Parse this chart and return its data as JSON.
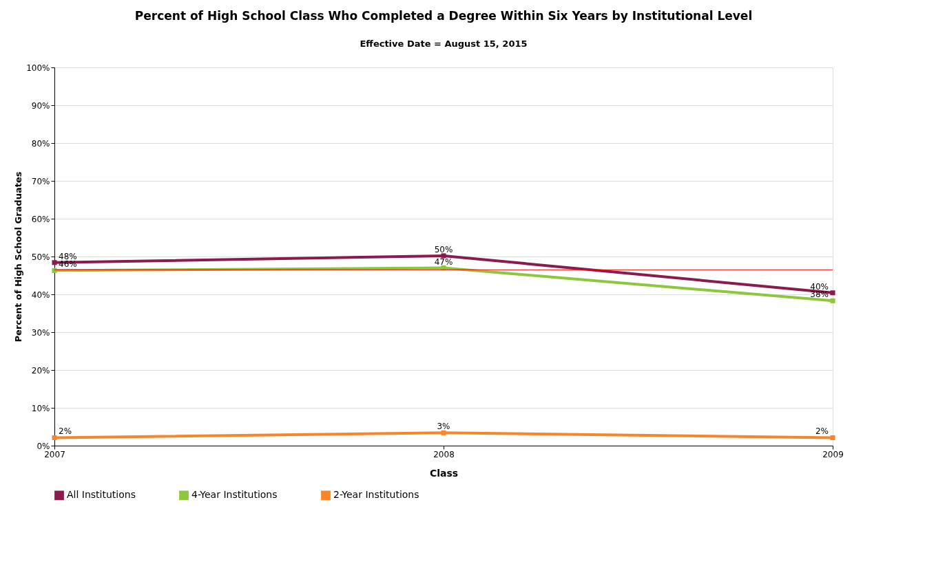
{
  "chart_data": {
    "type": "line",
    "title": "Percent of High School Class Who Completed a Degree Within Six Years by Institutional Level",
    "subtitle": "Effective Date = August 15, 2015",
    "xlabel": "Class",
    "ylabel": "Percent of High School Graduates",
    "categories": [
      "2007",
      "2008",
      "2009"
    ],
    "series": [
      {
        "name": "All Institutions",
        "color": "#8b1a4f",
        "values": [
          48.4,
          50.2,
          40.4
        ],
        "value_labels": [
          "48%",
          "50%",
          "40%"
        ]
      },
      {
        "name": "4-Year Institutions",
        "color": "#8dc63f",
        "values": [
          46.3,
          47.0,
          38.3
        ],
        "value_labels": [
          "46%",
          "47%",
          "38%"
        ]
      },
      {
        "name": "2-Year Institutions",
        "color": "#f7862a",
        "values": [
          2.1,
          3.4,
          2.1
        ],
        "value_labels": [
          "2%",
          "3%",
          "2%"
        ]
      }
    ],
    "ylim": [
      0,
      100
    ],
    "yticks": [
      {
        "value": 0,
        "label": "0%"
      },
      {
        "value": 10,
        "label": "10%"
      },
      {
        "value": 20,
        "label": "20%"
      },
      {
        "value": 30,
        "label": "30%"
      },
      {
        "value": 40,
        "label": "40%"
      },
      {
        "value": 50,
        "label": "50%"
      },
      {
        "value": 60,
        "label": "60%"
      },
      {
        "value": 70,
        "label": "70%"
      },
      {
        "value": 80,
        "label": "80%"
      },
      {
        "value": 90,
        "label": "90%"
      },
      {
        "value": 100,
        "label": "100%"
      }
    ],
    "ref_lines": [
      {
        "axis": "y",
        "value": 46.5,
        "color": "#ff0000"
      }
    ],
    "grid": "y",
    "legend": "bottom",
    "marker": "square",
    "line_style": "solid"
  }
}
